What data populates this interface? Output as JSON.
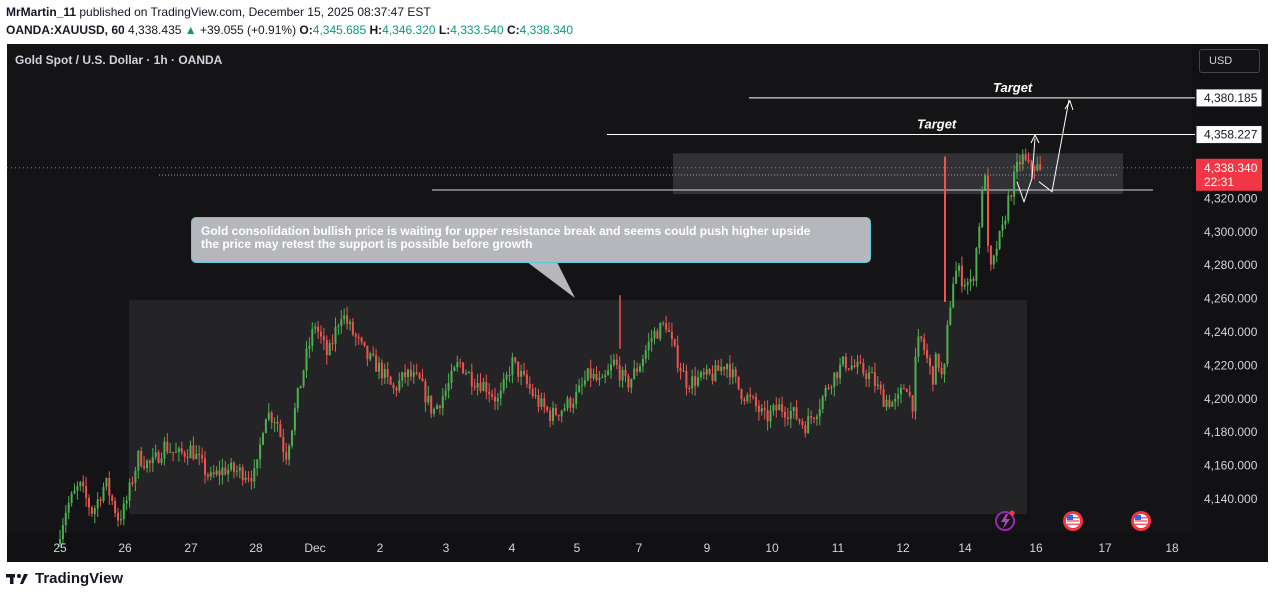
{
  "header": {
    "author": "MrMartin_11",
    "published": " published on TradingView.com, December 15, 2025 08:37:47 EST",
    "symbol": "OANDA:XAUUSD, 60",
    "last": "4,338.435",
    "change_arrow": "▲",
    "change": "+39.055 (+0.91%)",
    "o_label": "O:",
    "o": "4,345.685",
    "h_label": "H:",
    "h": "4,346.320",
    "l_label": "L:",
    "l": "4,333.540",
    "c_label": "C:",
    "c": "4,338.340"
  },
  "chart": {
    "title": "Gold Spot / U.S. Dollar · 1h · OANDA",
    "currency_button": "USD",
    "note": {
      "line1": "Gold consolidation bullish price is waiting for upper resistance break and seems could push higher upside",
      "line2": " the price may retest the support is possible before growth"
    },
    "target1_label": "Target",
    "target2_label": "Target",
    "target1_price": "4,358.227",
    "target2_price": "4,380.185",
    "current_price": "4,338.340",
    "countdown": "22:31",
    "up_color": "#26a69a",
    "bull_color": "#4caf50",
    "bear_color": "#ef5350",
    "icons": [
      "lightning-event-icon",
      "us-flag-icon",
      "us-flag-icon"
    ]
  },
  "footer": {
    "brand": "TradingView"
  },
  "chart_data": {
    "type": "candlestick",
    "title": "Gold Spot / U.S. Dollar · 1h · OANDA",
    "y_ticks": [
      4140,
      4160,
      4180,
      4200,
      4220,
      4240,
      4260,
      4280,
      4300,
      4320
    ],
    "y_tick_labels": [
      "4,140.000",
      "4,160.000",
      "4,180.000",
      "4,200.000",
      "4,220.000",
      "4,240.000",
      "4,260.000",
      "4,280.000",
      "4,300.000",
      "4,320.000"
    ],
    "x_tick_labels": [
      "25",
      "26",
      "27",
      "28",
      "Dec",
      "2",
      "3",
      "4",
      "5",
      "7",
      "9",
      "10",
      "11",
      "12",
      "14",
      "16",
      "17",
      "18"
    ],
    "ylim": [
      4119,
      4398
    ],
    "price_path": [
      [
        25,
        4121
      ],
      [
        25.1,
        4135
      ],
      [
        25.3,
        4148
      ],
      [
        25.5,
        4132
      ],
      [
        25.7,
        4150
      ],
      [
        25.9,
        4128
      ],
      [
        26,
        4135
      ],
      [
        26.2,
        4165
      ],
      [
        26.4,
        4160
      ],
      [
        26.6,
        4172
      ],
      [
        26.8,
        4166
      ],
      [
        27,
        4170
      ],
      [
        27.3,
        4152
      ],
      [
        27.5,
        4158
      ],
      [
        27.8,
        4156
      ],
      [
        28,
        4154
      ],
      [
        28.15,
        4192
      ],
      [
        28.35,
        4188
      ],
      [
        28.5,
        4165
      ],
      [
        28.7,
        4200
      ],
      [
        28.85,
        4225
      ],
      [
        29,
        4245
      ],
      [
        29.2,
        4225
      ],
      [
        29.4,
        4252
      ],
      [
        29.6,
        4238
      ],
      [
        29.8,
        4225
      ],
      [
        30,
        4218
      ],
      [
        30.2,
        4205
      ],
      [
        30.4,
        4215
      ],
      [
        30.6,
        4210
      ],
      [
        30.8,
        4192
      ],
      [
        31,
        4205
      ],
      [
        31.2,
        4222
      ],
      [
        31.4,
        4212
      ],
      [
        31.6,
        4208
      ],
      [
        31.8,
        4198
      ],
      [
        32,
        4222
      ],
      [
        32.2,
        4210
      ],
      [
        32.4,
        4198
      ],
      [
        32.6,
        4190
      ],
      [
        32.8,
        4195
      ],
      [
        33,
        4202
      ],
      [
        33.2,
        4215
      ],
      [
        33.4,
        4208
      ],
      [
        33.6,
        4222
      ],
      [
        33.8,
        4208
      ],
      [
        34,
        4220
      ],
      [
        34.2,
        4238
      ],
      [
        34.4,
        4245
      ],
      [
        34.5,
        4230
      ],
      [
        34.7,
        4210
      ],
      [
        34.9,
        4212
      ],
      [
        35.1,
        4214
      ],
      [
        35.3,
        4222
      ],
      [
        35.5,
        4205
      ],
      [
        35.7,
        4198
      ],
      [
        35.9,
        4188
      ],
      [
        36.1,
        4195
      ],
      [
        36.3,
        4192
      ],
      [
        36.5,
        4184
      ],
      [
        36.7,
        4195
      ],
      [
        36.9,
        4212
      ],
      [
        37.1,
        4222
      ],
      [
        37.3,
        4218
      ],
      [
        37.5,
        4214
      ],
      [
        37.7,
        4200
      ],
      [
        37.9,
        4197
      ],
      [
        38.1,
        4210
      ],
      [
        38.3,
        4195
      ],
      [
        38.45,
        4232
      ],
      [
        38.6,
        4235
      ],
      [
        38.8,
        4222
      ],
      [
        38.95,
        4212
      ],
      [
        39.1,
        4226
      ],
      [
        39.3,
        4208
      ],
      [
        39.45,
        4245
      ],
      [
        39.6,
        4270
      ],
      [
        39.75,
        4278
      ],
      [
        39.9,
        4272
      ],
      [
        40.05,
        4270
      ],
      [
        40.2,
        4268
      ],
      [
        40.35,
        4295
      ],
      [
        40.5,
        4325
      ],
      [
        40.6,
        4343
      ],
      [
        40.65,
        4285
      ],
      [
        40.75,
        4275
      ],
      [
        40.9,
        4292
      ],
      [
        41.05,
        4300
      ],
      [
        41.2,
        4318
      ],
      [
        41.3,
        4325
      ],
      [
        41.45,
        4337
      ],
      [
        41.6,
        4345
      ],
      [
        41.8,
        4338
      ],
      [
        42,
        4340
      ],
      [
        42.1,
        4332
      ]
    ],
    "target_levels": [
      4358.227,
      4380.185
    ],
    "support_level": 4325,
    "current_price": 4338.34,
    "box_consolidation_lower": [
      4131,
      4259
    ],
    "box_consolidation_upper": [
      4325,
      4345
    ]
  }
}
